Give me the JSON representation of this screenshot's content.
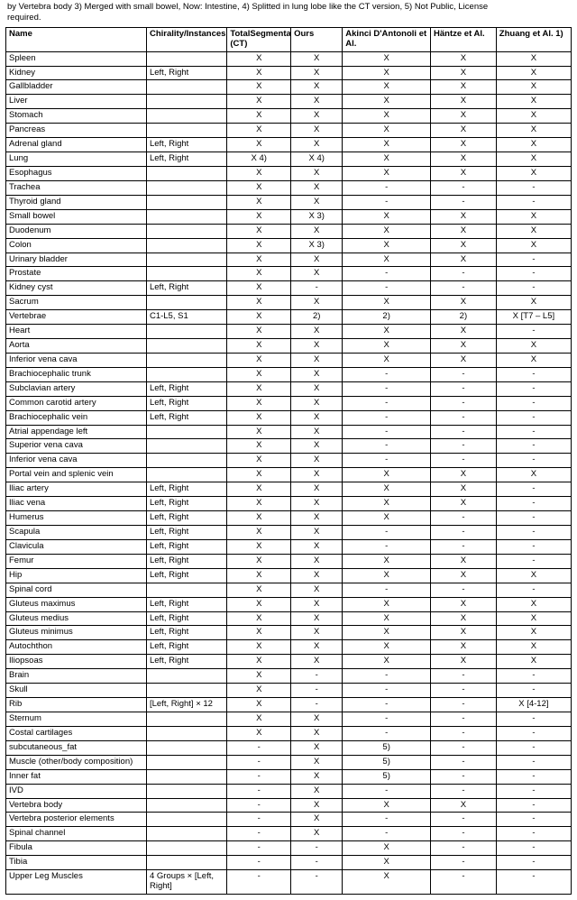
{
  "caption_line1": "by Vertebra body 3) Merged with small bowel, Now: Intestine, 4) Splitted in lung lobe like the CT version, 5) Not Public, License",
  "caption_line2": "required.",
  "columns": [
    {
      "key": "name",
      "label": "Name"
    },
    {
      "key": "chir",
      "label": "Chirality/Instances"
    },
    {
      "key": "ts",
      "label": "TotalSegmentator (CT)"
    },
    {
      "key": "ours",
      "label": "Ours"
    },
    {
      "key": "ak",
      "label": "Akinci D'Antonoli et Al."
    },
    {
      "key": "hz",
      "label": "Häntze et Al."
    },
    {
      "key": "zh",
      "label": "Zhuang et Al. 1)"
    }
  ],
  "rows": [
    {
      "name": "Spleen",
      "chir": "",
      "ts": "X",
      "ours": "X",
      "ak": "X",
      "hz": "X",
      "zh": "X"
    },
    {
      "name": "Kidney",
      "chir": "Left, Right",
      "ts": "X",
      "ours": "X",
      "ak": "X",
      "hz": "X",
      "zh": "X"
    },
    {
      "name": "Gallbladder",
      "chir": "",
      "ts": "X",
      "ours": "X",
      "ak": "X",
      "hz": "X",
      "zh": "X"
    },
    {
      "name": "Liver",
      "chir": "",
      "ts": "X",
      "ours": "X",
      "ak": "X",
      "hz": "X",
      "zh": "X"
    },
    {
      "name": "Stomach",
      "chir": "",
      "ts": "X",
      "ours": "X",
      "ak": "X",
      "hz": "X",
      "zh": "X"
    },
    {
      "name": "Pancreas",
      "chir": "",
      "ts": "X",
      "ours": "X",
      "ak": "X",
      "hz": "X",
      "zh": "X"
    },
    {
      "name": "Adrenal gland",
      "chir": "Left, Right",
      "ts": "X",
      "ours": "X",
      "ak": "X",
      "hz": "X",
      "zh": "X"
    },
    {
      "name": "Lung",
      "chir": "Left, Right",
      "ts": "X 4)",
      "ours": "X 4)",
      "ak": "X",
      "hz": "X",
      "zh": "X"
    },
    {
      "name": "Esophagus",
      "chir": "",
      "ts": "X",
      "ours": "X",
      "ak": "X",
      "hz": "X",
      "zh": "X"
    },
    {
      "name": "Trachea",
      "chir": "",
      "ts": "X",
      "ours": "X",
      "ak": "-",
      "hz": "-",
      "zh": "-"
    },
    {
      "name": "Thyroid gland",
      "chir": "",
      "ts": "X",
      "ours": "X",
      "ak": "-",
      "hz": "-",
      "zh": "-"
    },
    {
      "name": "Small bowel",
      "chir": "",
      "ts": "X",
      "ours": "X 3)",
      "ak": "X",
      "hz": "X",
      "zh": "X"
    },
    {
      "name": "Duodenum",
      "chir": "",
      "ts": "X",
      "ours": "X",
      "ak": "X",
      "hz": "X",
      "zh": "X"
    },
    {
      "name": "Colon",
      "chir": "",
      "ts": "X",
      "ours": "X 3)",
      "ak": "X",
      "hz": "X",
      "zh": "X"
    },
    {
      "name": "Urinary bladder",
      "chir": "",
      "ts": "X",
      "ours": "X",
      "ak": "X",
      "hz": "X",
      "zh": "-"
    },
    {
      "name": "Prostate",
      "chir": "",
      "ts": "X",
      "ours": "X",
      "ak": "-",
      "hz": "-",
      "zh": "-"
    },
    {
      "name": "Kidney cyst",
      "chir": "Left, Right",
      "ts": "X",
      "ours": "-",
      "ak": "-",
      "hz": "-",
      "zh": "-"
    },
    {
      "name": "Sacrum",
      "chir": "",
      "ts": "X",
      "ours": "X",
      "ak": "X",
      "hz": "X",
      "zh": "X"
    },
    {
      "name": "Vertebrae",
      "chir": "C1-L5, S1",
      "ts": "X",
      "ours": "2)",
      "ak": "2)",
      "hz": "2)",
      "zh": "X [T7 – L5]"
    },
    {
      "name": "Heart",
      "chir": "",
      "ts": "X",
      "ours": "X",
      "ak": "X",
      "hz": "X",
      "zh": "-"
    },
    {
      "name": "Aorta",
      "chir": "",
      "ts": "X",
      "ours": "X",
      "ak": "X",
      "hz": "X",
      "zh": "X"
    },
    {
      "name": "Inferior vena cava",
      "chir": "",
      "ts": "X",
      "ours": "X",
      "ak": "X",
      "hz": "X",
      "zh": "X"
    },
    {
      "name": "Brachiocephalic trunk",
      "chir": "",
      "ts": "X",
      "ours": "X",
      "ak": "-",
      "hz": "-",
      "zh": "-"
    },
    {
      "name": "Subclavian artery",
      "chir": "Left, Right",
      "ts": "X",
      "ours": "X",
      "ak": "-",
      "hz": "-",
      "zh": "-"
    },
    {
      "name": "Common carotid artery",
      "chir": "Left, Right",
      "ts": "X",
      "ours": "X",
      "ak": "-",
      "hz": "-",
      "zh": "-"
    },
    {
      "name": "Brachiocephalic vein",
      "chir": "Left, Right",
      "ts": "X",
      "ours": "X",
      "ak": "-",
      "hz": "-",
      "zh": "-"
    },
    {
      "name": "Atrial appendage left",
      "chir": "",
      "ts": "X",
      "ours": "X",
      "ak": "-",
      "hz": "-",
      "zh": "-"
    },
    {
      "name": "Superior vena cava",
      "chir": "",
      "ts": "X",
      "ours": "X",
      "ak": "-",
      "hz": "-",
      "zh": "-"
    },
    {
      "name": "Inferior vena cava",
      "chir": "",
      "ts": "X",
      "ours": "X",
      "ak": "-",
      "hz": "-",
      "zh": "-"
    },
    {
      "name": "Portal vein and splenic vein",
      "chir": "",
      "ts": "X",
      "ours": "X",
      "ak": "X",
      "hz": "X",
      "zh": "X"
    },
    {
      "name": "Iliac artery",
      "chir": "Left, Right",
      "ts": "X",
      "ours": "X",
      "ak": "X",
      "hz": "X",
      "zh": "-"
    },
    {
      "name": "Iliac vena",
      "chir": "Left, Right",
      "ts": "X",
      "ours": "X",
      "ak": "X",
      "hz": "X",
      "zh": "-"
    },
    {
      "name": "Humerus",
      "chir": "Left, Right",
      "ts": "X",
      "ours": "X",
      "ak": "X",
      "hz": "-",
      "zh": "-"
    },
    {
      "name": "Scapula",
      "chir": "Left, Right",
      "ts": "X",
      "ours": "X",
      "ak": "-",
      "hz": "-",
      "zh": "-"
    },
    {
      "name": "Clavicula",
      "chir": "Left, Right",
      "ts": "X",
      "ours": "X",
      "ak": "-",
      "hz": "-",
      "zh": "-"
    },
    {
      "name": "Femur",
      "chir": "Left, Right",
      "ts": "X",
      "ours": "X",
      "ak": "X",
      "hz": "X",
      "zh": "-"
    },
    {
      "name": "Hip",
      "chir": "Left, Right",
      "ts": "X",
      "ours": "X",
      "ak": "X",
      "hz": "X",
      "zh": "X"
    },
    {
      "name": "Spinal cord",
      "chir": "",
      "ts": "X",
      "ours": "X",
      "ak": "-",
      "hz": "-",
      "zh": "-"
    },
    {
      "name": "Gluteus maximus",
      "chir": "Left, Right",
      "ts": "X",
      "ours": "X",
      "ak": "X",
      "hz": "X",
      "zh": "X"
    },
    {
      "name": "Gluteus medius",
      "chir": "Left, Right",
      "ts": "X",
      "ours": "X",
      "ak": "X",
      "hz": "X",
      "zh": "X"
    },
    {
      "name": "Gluteus minimus",
      "chir": "Left, Right",
      "ts": "X",
      "ours": "X",
      "ak": "X",
      "hz": "X",
      "zh": "X"
    },
    {
      "name": "Autochthon",
      "chir": "Left, Right",
      "ts": "X",
      "ours": "X",
      "ak": "X",
      "hz": "X",
      "zh": "X"
    },
    {
      "name": "Iliopsoas",
      "chir": "Left, Right",
      "ts": "X",
      "ours": "X",
      "ak": "X",
      "hz": "X",
      "zh": "X"
    },
    {
      "name": "Brain",
      "chir": "",
      "ts": "X",
      "ours": "-",
      "ak": "-",
      "hz": "-",
      "zh": "-"
    },
    {
      "name": "Skull",
      "chir": "",
      "ts": "X",
      "ours": "-",
      "ak": "-",
      "hz": "-",
      "zh": "-"
    },
    {
      "name": "Rib",
      "chir": "[Left, Right] × 12",
      "ts": "X",
      "ours": "-",
      "ak": "-",
      "hz": "-",
      "zh": "X [4-12]"
    },
    {
      "name": "Sternum",
      "chir": "",
      "ts": "X",
      "ours": "X",
      "ak": "-",
      "hz": "-",
      "zh": "-"
    },
    {
      "name": "Costal cartilages",
      "chir": "",
      "ts": "X",
      "ours": "X",
      "ak": "-",
      "hz": "-",
      "zh": "-"
    },
    {
      "name": "subcutaneous_fat",
      "chir": "",
      "ts": "-",
      "ours": "X",
      "ak": "5)",
      "hz": "-",
      "zh": "-"
    },
    {
      "name": "Muscle (other/body composition)",
      "chir": "",
      "ts": "-",
      "ours": "X",
      "ak": "5)",
      "hz": "-",
      "zh": "-"
    },
    {
      "name": "Inner fat",
      "chir": "",
      "ts": "-",
      "ours": "X",
      "ak": "5)",
      "hz": "-",
      "zh": "-"
    },
    {
      "name": "IVD",
      "chir": "",
      "ts": "-",
      "ours": "X",
      "ak": "-",
      "hz": "-",
      "zh": "-"
    },
    {
      "name": "Vertebra body",
      "chir": "",
      "ts": "-",
      "ours": "X",
      "ak": "X",
      "hz": "X",
      "zh": "-"
    },
    {
      "name": "Vertebra posterior elements",
      "chir": "",
      "ts": "-",
      "ours": "X",
      "ak": "-",
      "hz": "-",
      "zh": "-"
    },
    {
      "name": "Spinal channel",
      "chir": "",
      "ts": "-",
      "ours": "X",
      "ak": "-",
      "hz": "-",
      "zh": "-"
    },
    {
      "name": "Fibula",
      "chir": "",
      "ts": "-",
      "ours": "-",
      "ak": "X",
      "hz": "-",
      "zh": "-"
    },
    {
      "name": "Tibia",
      "chir": "",
      "ts": "-",
      "ours": "-",
      "ak": "X",
      "hz": "-",
      "zh": "-"
    },
    {
      "name": "Upper Leg Muscles",
      "chir": "4 Groups × [Left, Right]",
      "ts": "-",
      "ours": "-",
      "ak": "X",
      "hz": "-",
      "zh": "-"
    }
  ]
}
